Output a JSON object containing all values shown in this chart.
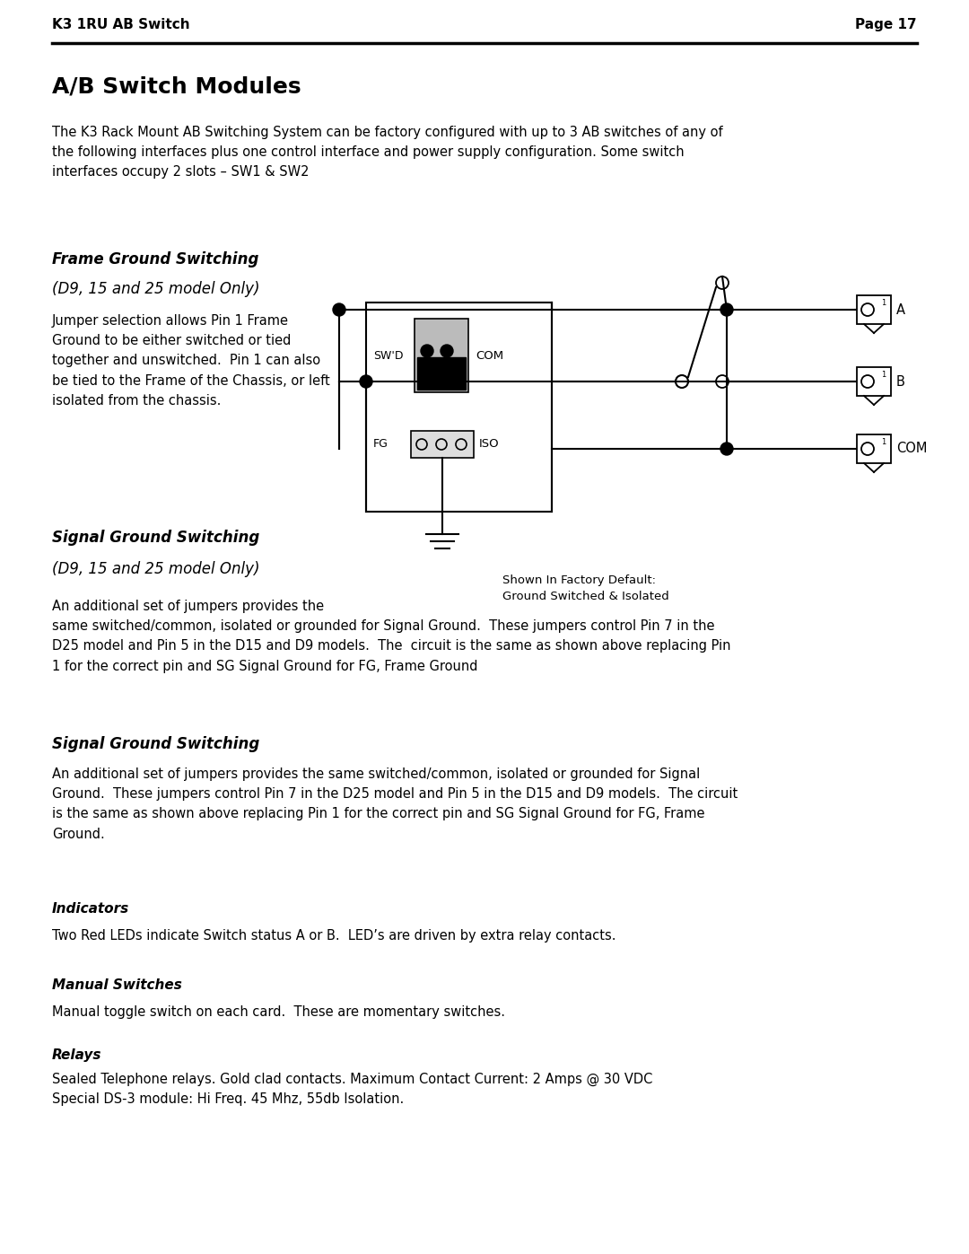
{
  "page_header_left": "K3 1RU AB Switch",
  "page_header_right": "Page 17",
  "title": "A/B Switch Modules",
  "intro_text": "The K3 Rack Mount AB Switching System can be factory configured with up to 3 AB switches of any of\nthe following interfaces plus one control interface and power supply configuration. Some switch\ninterfaces occupy 2 slots – SW1 & SW2",
  "section1_title": "Frame Ground Switching",
  "section1_subtitle": "(D9, 15 and 25 model Only)",
  "section1_text": "Jumper selection allows Pin 1 Frame\nGround to be either switched or tied\ntogether and unswitched.  Pin 1 can also\nbe tied to the Frame of the Chassis, or left\nisolated from the chassis.",
  "diagram_caption": "Shown In Factory Default:\nGround Switched & Isolated",
  "section2_title": "Signal Ground Switching",
  "section2_subtitle": "(D9, 15 and 25 model Only)",
  "section2_text": "An additional set of jumpers provides the\nsame switched/common, isolated or grounded for Signal Ground.  These jumpers control Pin 7 in the\nD25 model and Pin 5 in the D15 and D9 models.  The  circuit is the same as shown above replacing Pin\n1 for the correct pin and SG Signal Ground for FG, Frame Ground",
  "section3_title": "Signal Ground Switching",
  "section3_text": "An additional set of jumpers provides the same switched/common, isolated or grounded for Signal\nGround.  These jumpers control Pin 7 in the D25 model and Pin 5 in the D15 and D9 models.  The circuit\nis the same as shown above replacing Pin 1 for the correct pin and SG Signal Ground for FG, Frame\nGround.",
  "section4_title": "Indicators",
  "section4_text": "Two Red LEDs indicate Switch status A or B.  LED’s are driven by extra relay contacts.",
  "section5_title": "Manual Switches",
  "section5_text": "Manual toggle switch on each card.  These are momentary switches.",
  "section6_title": "Relays",
  "section6_text": "Sealed Telephone relays. Gold clad contacts. Maximum Contact Current: 2 Amps @ 30 VDC\nSpecial DS-3 module: Hi Freq. 45 Mhz, 55db Isolation.",
  "bg_color": "#ffffff",
  "text_color": "#000000",
  "line_color": "#000000"
}
